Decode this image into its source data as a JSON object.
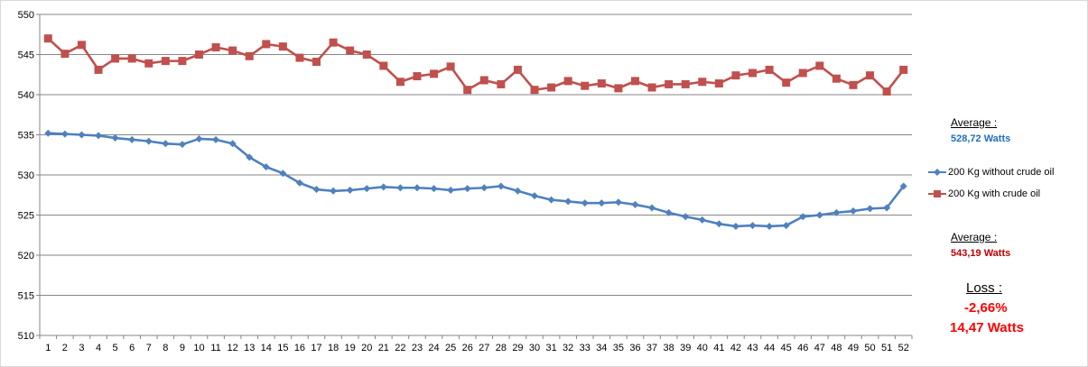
{
  "colors": {
    "series_blue": "#4F81BD",
    "series_red": "#C0504D",
    "grid": "#868686",
    "average_blue_text": "#1F6EC3",
    "average_red_text": "#C00000",
    "loss_red": "#FF0000"
  },
  "stats": {
    "avg1_label": "Average :",
    "avg1_value": "528,72 Watts",
    "avg2_label": "Average :",
    "avg2_value": "543,19 Watts",
    "loss_label": "Loss :",
    "loss_pct": "-2,66%",
    "loss_watts": "14,47 Watts"
  },
  "chart_data": {
    "type": "line",
    "title": "",
    "xlabel": "",
    "ylabel": "",
    "ylim": [
      510,
      550
    ],
    "yticks": [
      510,
      515,
      520,
      525,
      530,
      535,
      540,
      545,
      550
    ],
    "grid": "horizontal",
    "legend_position": "right",
    "x": [
      1,
      2,
      3,
      4,
      5,
      6,
      7,
      8,
      9,
      10,
      11,
      12,
      13,
      14,
      15,
      16,
      17,
      18,
      19,
      20,
      21,
      22,
      23,
      24,
      25,
      26,
      27,
      28,
      29,
      30,
      31,
      32,
      33,
      34,
      35,
      36,
      37,
      38,
      39,
      40,
      41,
      42,
      43,
      44,
      45,
      46,
      47,
      48,
      49,
      50,
      51,
      52
    ],
    "series": [
      {
        "name": "200 Kg without crude oil",
        "marker": "diamond",
        "values": [
          535.2,
          535.1,
          535.0,
          534.9,
          534.6,
          534.4,
          534.2,
          533.9,
          533.8,
          534.5,
          534.4,
          533.9,
          532.2,
          531.0,
          530.2,
          529.0,
          528.2,
          528.0,
          528.1,
          528.3,
          528.5,
          528.4,
          528.4,
          528.3,
          528.1,
          528.3,
          528.4,
          528.6,
          528.0,
          527.4,
          526.9,
          526.7,
          526.5,
          526.5,
          526.6,
          526.3,
          525.9,
          525.3,
          524.8,
          524.4,
          523.9,
          523.6,
          523.7,
          523.6,
          523.7,
          524.8,
          525.0,
          525.3,
          525.5,
          525.8,
          525.9,
          528.6
        ]
      },
      {
        "name": "200 Kg with crude oil",
        "marker": "square",
        "values": [
          547.0,
          545.1,
          546.2,
          543.1,
          544.5,
          544.5,
          543.9,
          544.2,
          544.2,
          545.0,
          545.9,
          545.5,
          544.8,
          546.3,
          546.0,
          544.6,
          544.1,
          546.5,
          545.5,
          545.0,
          543.6,
          541.6,
          542.3,
          542.6,
          543.5,
          540.6,
          541.8,
          541.3,
          543.1,
          540.6,
          540.9,
          541.7,
          541.1,
          541.4,
          540.8,
          541.7,
          540.9,
          541.3,
          541.3,
          541.6,
          541.4,
          542.4,
          542.7,
          543.1,
          541.5,
          542.7,
          543.6,
          542.0,
          541.2,
          542.4,
          540.4,
          543.1
        ]
      }
    ]
  }
}
